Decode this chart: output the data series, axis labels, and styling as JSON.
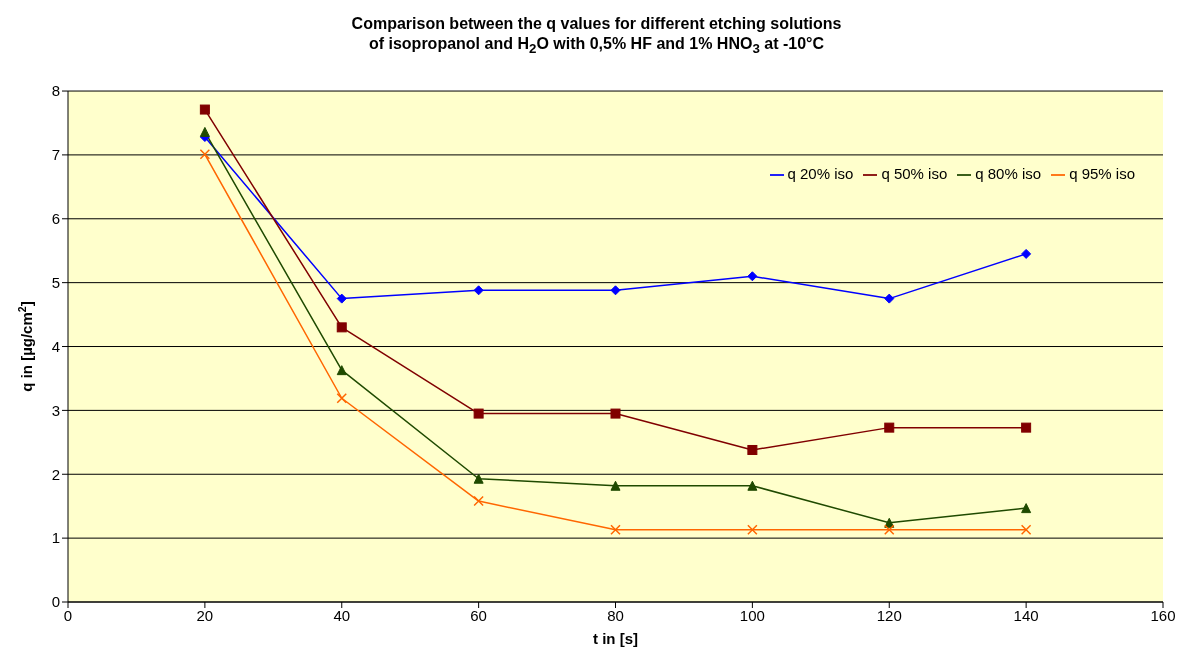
{
  "chart_data": {
    "type": "line",
    "title": "Comparison between the q values for different etching solutions\nof isopropanol and H$_{2}$O with 0,5% HF and 1% HNO$_{3}$ at -10°C",
    "xlabel": "t in [s]",
    "ylabel": "q in [µg/cm$^{2}$]",
    "x": [
      20,
      40,
      60,
      80,
      100,
      120,
      140
    ],
    "series": [
      {
        "name": "q 20% iso",
        "color": "#0000ff",
        "marker": "diamond",
        "values": [
          7.28,
          4.75,
          4.88,
          4.88,
          5.1,
          4.75,
          5.45
        ]
      },
      {
        "name": "q 50% iso",
        "color": "#800000",
        "marker": "square",
        "values": [
          7.71,
          4.3,
          2.95,
          2.95,
          2.38,
          2.73,
          2.73
        ]
      },
      {
        "name": "q 80% iso",
        "color": "#1f4a00",
        "marker": "triangle",
        "values": [
          7.36,
          3.63,
          1.93,
          1.82,
          1.82,
          1.24,
          1.47
        ]
      },
      {
        "name": "q 95% iso",
        "color": "#ff6600",
        "marker": "cross",
        "values": [
          7.01,
          3.19,
          1.58,
          1.13,
          1.13,
          1.13,
          1.13
        ]
      }
    ],
    "xlim": [
      0,
      160
    ],
    "xticks": [
      0,
      20,
      40,
      60,
      80,
      100,
      120,
      140,
      160
    ],
    "ylim": [
      0,
      8
    ],
    "yticks": [
      0,
      1,
      2,
      3,
      4,
      5,
      6,
      7,
      8
    ],
    "grid": "y",
    "legend": "top right",
    "line_style": "solid"
  }
}
